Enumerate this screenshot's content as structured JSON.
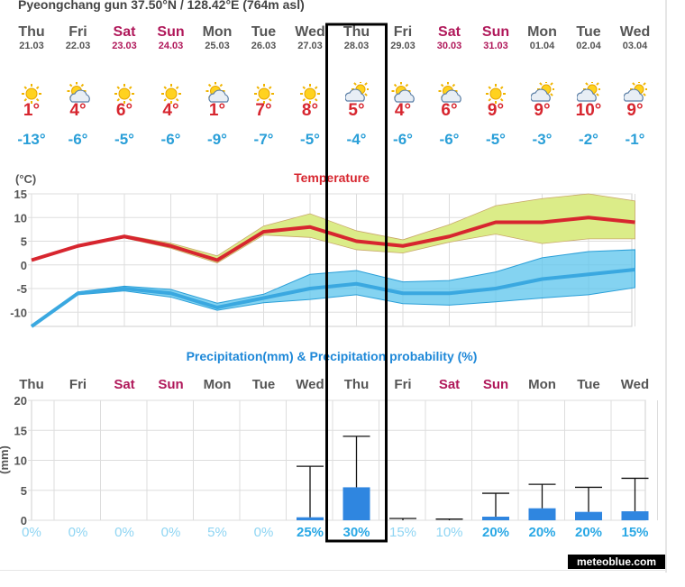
{
  "header": {
    "title": "Pyeongchang gun 37.50°N / 128.42°E (764m asl)"
  },
  "brand": "meteoblue.com",
  "colors": {
    "max_line": "#d7262f",
    "max_band": "#dbec88",
    "max_band_stroke": "#c9a86a",
    "min_line": "#3aa8e0",
    "min_band": "#5bc4ec",
    "bar": "#2f86e0",
    "weekend": "#b0185a",
    "prob": "#8fd5f3",
    "highlight": "#000000"
  },
  "days": [
    {
      "name": "Thu",
      "date": "21.03",
      "weekend": false,
      "icon": "sun-icon",
      "max": "1°",
      "min": "-13°"
    },
    {
      "name": "Fri",
      "date": "22.03",
      "weekend": false,
      "icon": "sun-cloud-icon",
      "max": "4°",
      "min": "-6°"
    },
    {
      "name": "Sat",
      "date": "23.03",
      "weekend": true,
      "icon": "sun-icon",
      "max": "6°",
      "min": "-5°"
    },
    {
      "name": "Sun",
      "date": "24.03",
      "weekend": true,
      "icon": "sun-icon",
      "max": "4°",
      "min": "-6°"
    },
    {
      "name": "Mon",
      "date": "25.03",
      "weekend": false,
      "icon": "sun-cloud-icon",
      "max": "1°",
      "min": "-9°"
    },
    {
      "name": "Tue",
      "date": "26.03",
      "weekend": false,
      "icon": "sun-icon",
      "max": "7°",
      "min": "-7°"
    },
    {
      "name": "Wed",
      "date": "27.03",
      "weekend": false,
      "icon": "sun-icon",
      "max": "8°",
      "min": "-5°"
    },
    {
      "name": "Thu",
      "date": "28.03",
      "weekend": false,
      "icon": "cloud-sun-icon",
      "max": "5°",
      "min": "-4°"
    },
    {
      "name": "Fri",
      "date": "29.03",
      "weekend": false,
      "icon": "sun-cloud-icon",
      "max": "4°",
      "min": "-6°"
    },
    {
      "name": "Sat",
      "date": "30.03",
      "weekend": true,
      "icon": "sun-cloud-icon",
      "max": "6°",
      "min": "-6°"
    },
    {
      "name": "Sun",
      "date": "31.03",
      "weekend": true,
      "icon": "sun-icon",
      "max": "9°",
      "min": "-5°"
    },
    {
      "name": "Mon",
      "date": "01.04",
      "weekend": false,
      "icon": "cloud-sun-icon",
      "max": "9°",
      "min": "-3°"
    },
    {
      "name": "Tue",
      "date": "02.04",
      "weekend": false,
      "icon": "cloud-sun-icon",
      "max": "10°",
      "min": "-2°"
    },
    {
      "name": "Wed",
      "date": "03.04",
      "weekend": false,
      "icon": "cloud-sun-icon",
      "max": "9°",
      "min": "-1°"
    }
  ],
  "chart_data": [
    {
      "type": "line",
      "title": "Temperature",
      "ylabel": "(°C)",
      "ylim": [
        -13,
        15
      ],
      "yticks": [
        15,
        10,
        5,
        0,
        -5,
        -10
      ],
      "x": [
        "21.03",
        "22.03",
        "23.03",
        "24.03",
        "25.03",
        "26.03",
        "27.03",
        "28.03",
        "29.03",
        "30.03",
        "31.03",
        "01.04",
        "02.04",
        "03.04"
      ],
      "series": [
        {
          "values": [
            1,
            4,
            6,
            4,
            1,
            7,
            8,
            5,
            4,
            6,
            9,
            9,
            10,
            9
          ],
          "band_low": [
            1,
            4,
            5.7,
            3.5,
            0.4,
            6.3,
            5.8,
            3.2,
            2.5,
            4.8,
            6.5,
            4.5,
            5.5,
            5.5
          ],
          "band_high": [
            1,
            4,
            6.3,
            4.6,
            1.9,
            8.2,
            10.8,
            7.2,
            5.3,
            8.5,
            12.5,
            14,
            15,
            13.5
          ]
        },
        {
          "values": [
            -13,
            -6,
            -5,
            -6,
            -9,
            -7,
            -5,
            -4,
            -6,
            -6,
            -5,
            -3,
            -2,
            -1
          ],
          "band_low": [
            -13,
            -6.3,
            -5.5,
            -6.8,
            -9.6,
            -8,
            -7.3,
            -6.3,
            -8.2,
            -8.5,
            -7.8,
            -7,
            -6.3,
            -4.8
          ],
          "band_high": [
            -13,
            -5.7,
            -4.5,
            -5.2,
            -8.1,
            -6.2,
            -2,
            -1.2,
            -3.6,
            -3.3,
            -1.5,
            1.5,
            2.8,
            3.2
          ]
        }
      ]
    },
    {
      "type": "bar",
      "title": "Precipitation(mm) & Precipitation probability (%)",
      "ylabel": "(mm)",
      "ylim": [
        0,
        20
      ],
      "yticks": [
        20,
        15,
        10,
        5,
        0
      ],
      "categories": [
        "Thu",
        "Fri",
        "Sat",
        "Sun",
        "Mon",
        "Tue",
        "Wed",
        "Thu",
        "Fri",
        "Sat",
        "Sun",
        "Mon",
        "Tue",
        "Wed"
      ],
      "weekend": [
        false,
        false,
        true,
        true,
        false,
        false,
        false,
        false,
        false,
        true,
        true,
        false,
        false,
        false
      ],
      "values": [
        0,
        0,
        0,
        0,
        0,
        0,
        0.5,
        5.5,
        0,
        0,
        0.6,
        2,
        1.4,
        1.5
      ],
      "error_high": [
        0,
        0,
        0,
        0,
        0,
        0,
        9,
        14,
        0.3,
        0.2,
        4.5,
        6,
        5.5,
        7
      ],
      "probability": [
        "0%",
        "0%",
        "0%",
        "0%",
        "5%",
        "0%",
        "25%",
        "30%",
        "15%",
        "10%",
        "20%",
        "20%",
        "20%",
        "15%"
      ],
      "prob_bold": [
        false,
        false,
        false,
        false,
        false,
        false,
        true,
        true,
        false,
        false,
        true,
        true,
        true,
        true
      ]
    }
  ],
  "highlight_day_index": 7
}
